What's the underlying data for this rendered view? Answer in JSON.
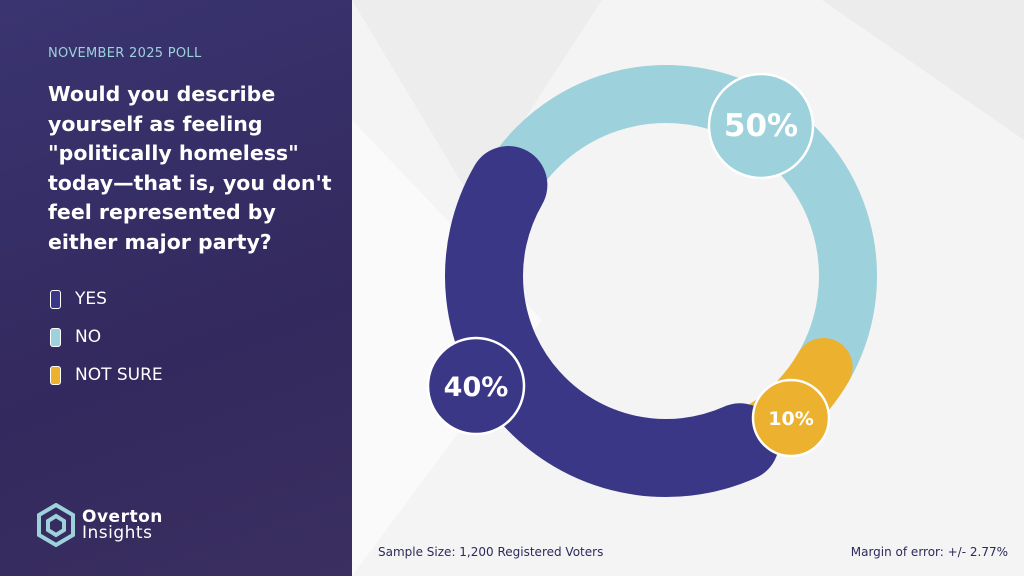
{
  "header": {
    "kicker": "NOVEMBER 2025 POLL",
    "question": "Would you describe yourself as feeling \"politically homeless\" today—that is, you don't feel represented by either major party?"
  },
  "brand": {
    "name_line1": "Overton",
    "name_line2": "Insights",
    "logo_color": "#9dd1db"
  },
  "footer": {
    "sample": "Sample Size: 1,200 Registered Voters",
    "margin": "Margin of error: +/- 2.77%"
  },
  "chart_data": {
    "type": "pie",
    "variant": "donut",
    "categories": [
      "YES",
      "NO",
      "NOT SURE"
    ],
    "values": [
      40,
      50,
      10
    ],
    "labels": [
      "40%",
      "50%",
      "10%"
    ],
    "colors": [
      "#3b3787",
      "#9dd1db",
      "#ecb12f"
    ],
    "legend": {
      "placement": "left",
      "entries": [
        "YES",
        "NO",
        "NOT SURE"
      ]
    }
  }
}
